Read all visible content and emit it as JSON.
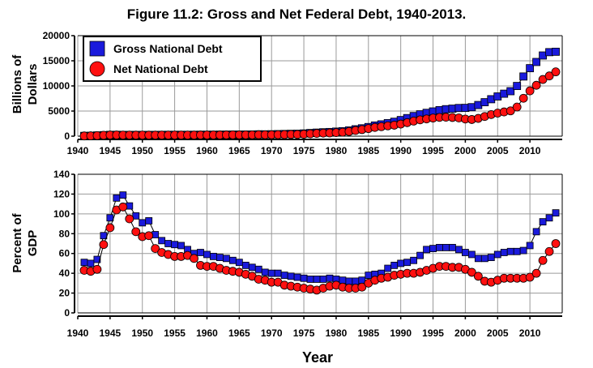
{
  "title": "Figure 11.2: Gross and Net Federal Debt, 1940-2013.",
  "colors": {
    "gross": "#1a1adc",
    "net": "#ff1010",
    "grid": "#9a9a9a",
    "axis": "#000000"
  },
  "chart_data": [
    {
      "type": "scatter",
      "ylabel": [
        "Billions of",
        "Dollars"
      ],
      "xlabel": "",
      "xlim": [
        1940,
        2015
      ],
      "ylim": [
        0,
        20000
      ],
      "yticks": [
        0,
        5000,
        10000,
        15000,
        20000
      ],
      "xticks": [
        1940,
        1945,
        1950,
        1955,
        1960,
        1965,
        1970,
        1975,
        1980,
        1985,
        1990,
        1995,
        2000,
        2005,
        2010
      ],
      "grid": true,
      "legend": "top-left",
      "series": [
        {
          "name": "Gross National Debt",
          "marker": "square",
          "x": [
            1941,
            1942,
            1943,
            1944,
            1945,
            1946,
            1947,
            1948,
            1949,
            1950,
            1951,
            1952,
            1953,
            1954,
            1955,
            1956,
            1957,
            1958,
            1959,
            1960,
            1961,
            1962,
            1963,
            1964,
            1965,
            1966,
            1967,
            1968,
            1969,
            1970,
            1971,
            1972,
            1973,
            1974,
            1975,
            1976,
            1977,
            1978,
            1979,
            1980,
            1981,
            1982,
            1983,
            1984,
            1985,
            1986,
            1987,
            1988,
            1989,
            1990,
            1991,
            1992,
            1993,
            1994,
            1995,
            1996,
            1997,
            1998,
            1999,
            2000,
            2001,
            2002,
            2003,
            2004,
            2005,
            2006,
            2007,
            2008,
            2009,
            2010,
            2011,
            2012,
            2013,
            2014
          ],
          "y": [
            58,
            79,
            143,
            204,
            260,
            271,
            257,
            252,
            253,
            257,
            255,
            259,
            266,
            271,
            274,
            273,
            272,
            280,
            287,
            291,
            293,
            303,
            311,
            317,
            322,
            329,
            340,
            369,
            366,
            381,
            408,
            436,
            466,
            484,
            542,
            629,
            706,
            777,
            829,
            909,
            995,
            1137,
            1372,
            1565,
            1817,
            2121,
            2346,
            2601,
            2868,
            3206,
            3598,
            4002,
            4351,
            4643,
            4921,
            5181,
            5369,
            5478,
            5605,
            5628,
            5770,
            6198,
            6760,
            7355,
            7905,
            8451,
            8951,
            9986,
            11876,
            13529,
            14764,
            16051,
            16719,
            16800
          ]
        },
        {
          "name": "Net National Debt",
          "marker": "circle",
          "x": [
            1941,
            1942,
            1943,
            1944,
            1945,
            1946,
            1947,
            1948,
            1949,
            1950,
            1951,
            1952,
            1953,
            1954,
            1955,
            1956,
            1957,
            1958,
            1959,
            1960,
            1961,
            1962,
            1963,
            1964,
            1965,
            1966,
            1967,
            1968,
            1969,
            1970,
            1971,
            1972,
            1973,
            1974,
            1975,
            1976,
            1977,
            1978,
            1979,
            1980,
            1981,
            1982,
            1983,
            1984,
            1985,
            1986,
            1987,
            1988,
            1989,
            1990,
            1991,
            1992,
            1993,
            1994,
            1995,
            1996,
            1997,
            1998,
            1999,
            2000,
            2001,
            2002,
            2003,
            2004,
            2005,
            2006,
            2007,
            2008,
            2009,
            2010,
            2011,
            2012,
            2013,
            2014
          ],
          "y": [
            49,
            67,
            127,
            184,
            235,
            241,
            224,
            216,
            214,
            219,
            214,
            215,
            218,
            224,
            227,
            222,
            219,
            226,
            235,
            237,
            238,
            248,
            254,
            257,
            261,
            264,
            267,
            290,
            278,
            283,
            303,
            322,
            341,
            344,
            395,
            477,
            549,
            607,
            640,
            712,
            789,
            925,
            1137,
            1307,
            1507,
            1741,
            1890,
            2052,
            2191,
            2412,
            2689,
            3000,
            3248,
            3433,
            3604,
            3734,
            3772,
            3721,
            3632,
            3410,
            3320,
            3540,
            3913,
            4296,
            4592,
            4829,
            5035,
            5803,
            7545,
            9019,
            10128,
            11281,
            11983,
            12800
          ]
        }
      ]
    },
    {
      "type": "scatter",
      "ylabel": [
        "Percent of",
        "GDP"
      ],
      "xlabel": "Year",
      "xlim": [
        1940,
        2015
      ],
      "ylim": [
        0,
        140
      ],
      "yticks": [
        0,
        20,
        40,
        60,
        80,
        100,
        120,
        140
      ],
      "xticks": [
        1940,
        1945,
        1950,
        1955,
        1960,
        1965,
        1970,
        1975,
        1980,
        1985,
        1990,
        1995,
        2000,
        2005,
        2010
      ],
      "grid": true,
      "series": [
        {
          "name": "Gross National Debt",
          "marker": "square",
          "x": [
            1941,
            1942,
            1943,
            1944,
            1945,
            1946,
            1947,
            1948,
            1949,
            1950,
            1951,
            1952,
            1953,
            1954,
            1955,
            1956,
            1957,
            1958,
            1959,
            1960,
            1961,
            1962,
            1963,
            1964,
            1965,
            1966,
            1967,
            1968,
            1969,
            1970,
            1971,
            1972,
            1973,
            1974,
            1975,
            1976,
            1977,
            1978,
            1979,
            1980,
            1981,
            1982,
            1983,
            1984,
            1985,
            1986,
            1987,
            1988,
            1989,
            1990,
            1991,
            1992,
            1993,
            1994,
            1995,
            1996,
            1997,
            1998,
            1999,
            2000,
            2001,
            2002,
            2003,
            2004,
            2005,
            2006,
            2007,
            2008,
            2009,
            2010,
            2011,
            2012,
            2013,
            2014
          ],
          "y": [
            51,
            50,
            54,
            78,
            96,
            116,
            119,
            108,
            98,
            91,
            93,
            79,
            73,
            70,
            69,
            68,
            64,
            60,
            61,
            59,
            57,
            56,
            55,
            53,
            51,
            48,
            46,
            44,
            41,
            40,
            40,
            38,
            37,
            36,
            35,
            34,
            34,
            34,
            35,
            34,
            33,
            32,
            32,
            33,
            38,
            39,
            40,
            45,
            48,
            50,
            51,
            53,
            58,
            64,
            65,
            66,
            66,
            66,
            64,
            61,
            59,
            55,
            55,
            56,
            59,
            61,
            62,
            62,
            63,
            68,
            82,
            92,
            96,
            101
          ]
        },
        {
          "name": "Net National Debt",
          "marker": "circle",
          "x": [
            1941,
            1942,
            1943,
            1944,
            1945,
            1946,
            1947,
            1948,
            1949,
            1950,
            1951,
            1952,
            1953,
            1954,
            1955,
            1956,
            1957,
            1958,
            1959,
            1960,
            1961,
            1962,
            1963,
            1964,
            1965,
            1966,
            1967,
            1968,
            1969,
            1970,
            1971,
            1972,
            1973,
            1974,
            1975,
            1976,
            1977,
            1978,
            1979,
            1980,
            1981,
            1982,
            1983,
            1984,
            1985,
            1986,
            1987,
            1988,
            1989,
            1990,
            1991,
            1992,
            1993,
            1994,
            1995,
            1996,
            1997,
            1998,
            1999,
            2000,
            2001,
            2002,
            2003,
            2004,
            2005,
            2006,
            2007,
            2008,
            2009,
            2010,
            2011,
            2012,
            2013,
            2014
          ],
          "y": [
            43,
            42,
            44,
            69,
            86,
            104,
            107,
            95,
            82,
            77,
            78,
            65,
            61,
            59,
            57,
            57,
            58,
            55,
            48,
            47,
            47,
            45,
            43,
            42,
            41,
            39,
            37,
            34,
            33,
            31,
            31,
            28,
            27,
            26,
            25,
            24,
            23,
            25,
            27,
            28,
            26,
            25,
            25,
            26,
            30,
            33,
            35,
            36,
            38,
            39,
            40,
            40,
            41,
            43,
            45,
            47,
            47,
            46,
            46,
            44,
            41,
            37,
            32,
            31,
            33,
            35,
            35,
            35,
            35,
            36,
            40,
            53,
            62,
            70
          ]
        }
      ]
    }
  ]
}
